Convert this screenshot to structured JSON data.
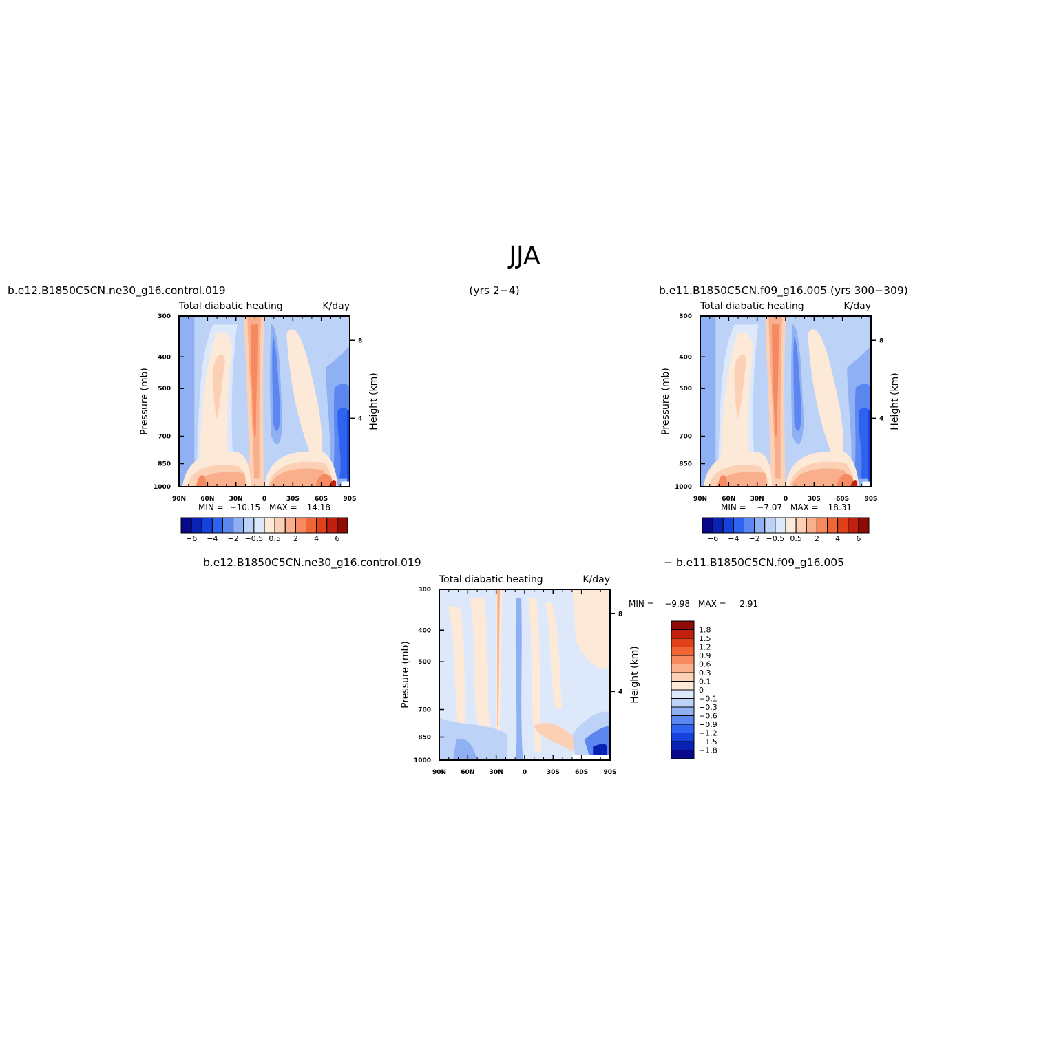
{
  "figure": {
    "title": "JJA",
    "top_left_case": "b.e12.B1850C5CN.ne30_g16.control.019",
    "top_years": "(yrs 2−4)",
    "top_right_case": "b.e11.B1850C5CN.f09_g16.005 (yrs 300−309)",
    "diff_left_case": "b.e12.B1850C5CN.ne30_g16.control.019",
    "diff_right_case": "− b.e11.B1850C5CN.f09_g16.005"
  },
  "colors": {
    "abs_levels": [
      "#08088a",
      "#0a22b4",
      "#1541dd",
      "#2e63f0",
      "#5c87f0",
      "#8fb0f2",
      "#bdd2f7",
      "#dde9fb",
      "#fde9d8",
      "#fcd0b5",
      "#f9ae8c",
      "#f6895f",
      "#f06535",
      "#e0411a",
      "#c0200d",
      "#8e0c05"
    ],
    "diff_levels": [
      "#08088a",
      "#0a22b4",
      "#1541dd",
      "#2e63f0",
      "#5c87f0",
      "#8fb0f2",
      "#bdd2f7",
      "#dde9fb",
      "#fde9d8",
      "#fcd0b5",
      "#f9ae8c",
      "#f6895f",
      "#f06535",
      "#e0411a",
      "#c0200d",
      "#8e0c05"
    ]
  },
  "chart_data": [
    {
      "type": "heatmap",
      "panel": "control",
      "title_left": "Total diabatic heating",
      "title_right": "K/day",
      "ylabel": "Pressure (mb)",
      "ylabel_right": "Height (km)",
      "x_ticks": [
        "90N",
        "60N",
        "30N",
        "0",
        "30S",
        "60S",
        "90S"
      ],
      "x_range": [
        90,
        -90
      ],
      "y_ticks": [
        "300",
        "400",
        "500",
        "700",
        "850",
        "1000"
      ],
      "y_range": [
        1000,
        300
      ],
      "y_right_ticks": [
        "8",
        "4"
      ],
      "min_label": "MIN =",
      "min_value": "−10.15",
      "max_label": "MAX =",
      "max_value": "14.18",
      "colorbar_labels": [
        "−6",
        "−4",
        "−2",
        "−0.5",
        "0.5",
        "2",
        "4",
        "6"
      ]
    },
    {
      "type": "heatmap",
      "panel": "reference",
      "title_left": "Total diabatic heating",
      "title_right": "K/day",
      "ylabel": "Pressure (mb)",
      "ylabel_right": "Height (km)",
      "x_ticks": [
        "90N",
        "60N",
        "30N",
        "0",
        "30S",
        "60S",
        "90S"
      ],
      "x_range": [
        90,
        -90
      ],
      "y_ticks": [
        "300",
        "400",
        "500",
        "700",
        "850",
        "1000"
      ],
      "y_range": [
        1000,
        300
      ],
      "y_right_ticks": [
        "8",
        "4"
      ],
      "min_label": "MIN =",
      "min_value": "−7.07",
      "max_label": "MAX =",
      "max_value": "18.31",
      "colorbar_labels": [
        "−6",
        "−4",
        "−2",
        "−0.5",
        "0.5",
        "2",
        "4",
        "6"
      ]
    },
    {
      "type": "heatmap",
      "panel": "difference",
      "title_left": "Total diabatic heating",
      "title_right": "K/day",
      "ylabel": "Pressure (mb)",
      "ylabel_right": "Height (km)",
      "x_ticks": [
        "90N",
        "60N",
        "30N",
        "0",
        "30S",
        "60S",
        "90S"
      ],
      "x_range": [
        90,
        -90
      ],
      "y_ticks": [
        "300",
        "400",
        "500",
        "700",
        "850",
        "1000"
      ],
      "y_range": [
        1000,
        300
      ],
      "y_right_ticks": [
        "8",
        "4"
      ],
      "min_label": "MIN =",
      "min_value": "−9.98",
      "max_label": "MAX =",
      "max_value": "2.91",
      "colorbar_labels": [
        "1.8",
        "1.5",
        "1.2",
        "0.9",
        "0.6",
        "0.3",
        "0.1",
        "0",
        "−0.1",
        "−0.3",
        "−0.6",
        "−0.9",
        "−1.2",
        "−1.5",
        "−1.8"
      ]
    }
  ]
}
